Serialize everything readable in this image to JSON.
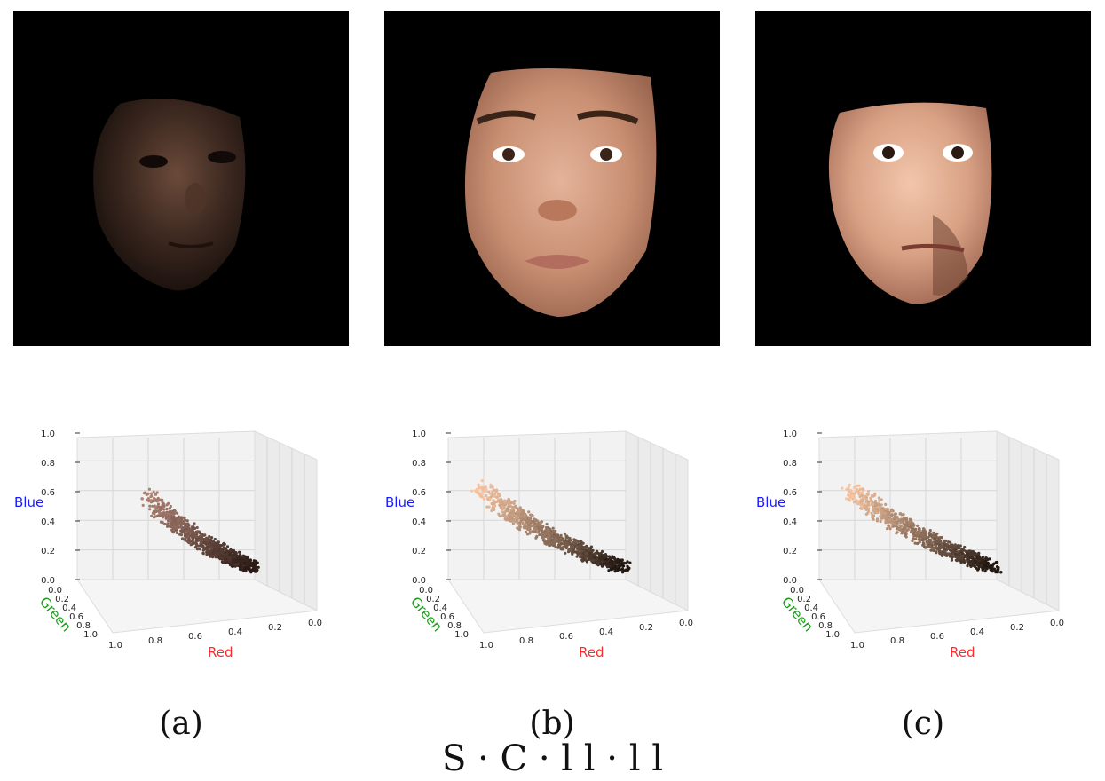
{
  "panels": [
    {
      "caption": "(a)",
      "image_alt": "dark, poorly lit face"
    },
    {
      "caption": "(b)",
      "image_alt": "well-lit frontal face"
    },
    {
      "caption": "(c)",
      "image_alt": "lightened face with artifacts"
    }
  ],
  "plot_labels": {
    "x": "Red",
    "y": "Green",
    "z": "Blue"
  },
  "ticks": {
    "z": [
      "0.0",
      "0.2",
      "0.4",
      "0.6",
      "0.8",
      "1.0"
    ],
    "green": [
      "0.0",
      "0.2",
      "0.4",
      "0.6",
      "0.8",
      "1.0"
    ],
    "red": [
      "1.0",
      "0.8",
      "0.6",
      "0.4",
      "0.2",
      "0.0"
    ]
  },
  "colors": {
    "red_label": "#ff2a2a",
    "green_label": "#1a9c1a",
    "blue_label": "#1a1aff"
  },
  "figure_title": "S    ·   C     ·  l  l    ·    l    l"
}
